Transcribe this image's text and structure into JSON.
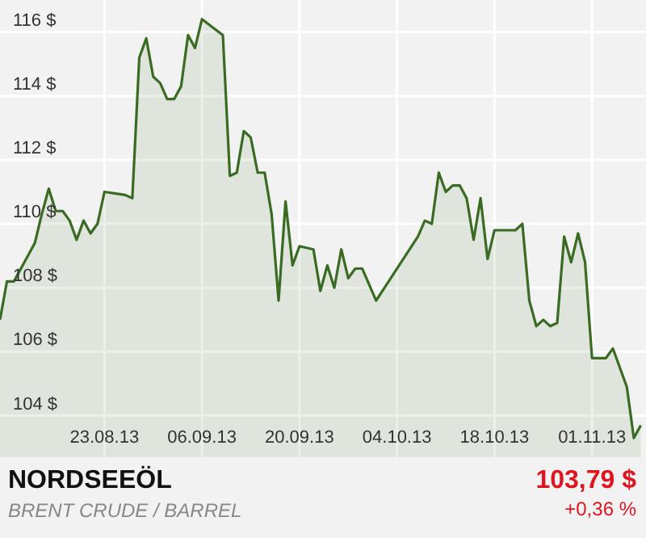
{
  "chart_data": {
    "type": "area",
    "title": "NORDSEEÖL",
    "subtitle": "BRENT CRUDE / BARREL",
    "annotations": [
      "103,79 $",
      "+0,36 %"
    ],
    "x": [
      "2013-08-08",
      "2013-08-09",
      "2013-08-10",
      "2013-08-12",
      "2013-08-13",
      "2013-08-14",
      "2013-08-15",
      "2013-08-16",
      "2013-08-17",
      "2013-08-18",
      "2013-08-19",
      "2013-08-20",
      "2013-08-21",
      "2013-08-22",
      "2013-08-23",
      "2013-08-26",
      "2013-08-27",
      "2013-08-28",
      "2013-08-29",
      "2013-08-30",
      "2013-08-31",
      "2013-09-01",
      "2013-09-02",
      "2013-09-03",
      "2013-09-04",
      "2013-09-05",
      "2013-09-06",
      "2013-09-09",
      "2013-09-10",
      "2013-09-11",
      "2013-09-12",
      "2013-09-13",
      "2013-09-14",
      "2013-09-15",
      "2013-09-16",
      "2013-09-17",
      "2013-09-18",
      "2013-09-19",
      "2013-09-20",
      "2013-09-22",
      "2013-09-23",
      "2013-09-24",
      "2013-09-25",
      "2013-09-26",
      "2013-09-27",
      "2013-09-28",
      "2013-09-29",
      "2013-10-01",
      "2013-10-07",
      "2013-10-08",
      "2013-10-09",
      "2013-10-10",
      "2013-10-11",
      "2013-10-12",
      "2013-10-13",
      "2013-10-14",
      "2013-10-15",
      "2013-10-16",
      "2013-10-17",
      "2013-10-18",
      "2013-10-20",
      "2013-10-21",
      "2013-10-22",
      "2013-10-23",
      "2013-10-24",
      "2013-10-25",
      "2013-10-26",
      "2013-10-27",
      "2013-10-28",
      "2013-10-29",
      "2013-10-30",
      "2013-10-31",
      "2013-11-01",
      "2013-11-03",
      "2013-11-04",
      "2013-11-05",
      "2013-11-06",
      "2013-11-07",
      "2013-11-08"
    ],
    "series": [
      {
        "color": "#3a6b23",
        "values": [
          107.0,
          108.2,
          108.2,
          109.0,
          109.4,
          110.3,
          111.1,
          110.4,
          110.4,
          110.1,
          109.5,
          110.1,
          109.7,
          110.0,
          111.0,
          110.9,
          110.8,
          115.2,
          115.8,
          114.6,
          114.4,
          113.9,
          113.9,
          114.3,
          115.9,
          115.5,
          116.4,
          115.9,
          111.5,
          111.6,
          112.9,
          112.7,
          111.6,
          111.6,
          110.3,
          107.6,
          110.7,
          108.7,
          109.3,
          109.2,
          107.9,
          108.7,
          108.0,
          109.2,
          108.3,
          108.6,
          108.6,
          107.6,
          109.6,
          110.1,
          110.0,
          111.6,
          111.0,
          111.2,
          111.2,
          110.8,
          109.5,
          110.8,
          108.9,
          109.8,
          109.8,
          109.8,
          110.0,
          107.6,
          106.8,
          107.0,
          106.8,
          106.9,
          109.6,
          108.8,
          109.7,
          108.8,
          105.8,
          105.8,
          106.1,
          105.5,
          104.9,
          103.3,
          103.7
        ]
      }
    ],
    "xlim": [
      "2013-08-08",
      "2013-11-08T18:00"
    ],
    "ylim": [
      102.7,
      117
    ],
    "xticks": [
      {
        "value": "2013-08-23",
        "label": "23.08.13"
      },
      {
        "value": "2013-09-06",
        "label": "06.09.13"
      },
      {
        "value": "2013-09-20",
        "label": "20.09.13"
      },
      {
        "value": "2013-10-04",
        "label": "04.10.13"
      },
      {
        "value": "2013-10-18",
        "label": "18.10.13"
      },
      {
        "value": "2013-11-01",
        "label": "01.11.13"
      }
    ],
    "yticks": [
      {
        "value": 104,
        "label": "104 $"
      },
      {
        "value": 106,
        "label": "106 $"
      },
      {
        "value": 108,
        "label": "108 $"
      },
      {
        "value": 110,
        "label": "110 $"
      },
      {
        "value": 112,
        "label": "112 $"
      },
      {
        "value": 114,
        "label": "114 $"
      },
      {
        "value": 116,
        "label": "116 $"
      }
    ],
    "grid": true
  }
}
